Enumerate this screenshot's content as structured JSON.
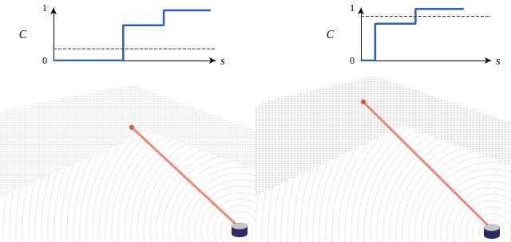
{
  "chart_data": [
    {
      "type": "line",
      "x_label": "s",
      "y_label": "C",
      "x": [
        0,
        0.43,
        0.43,
        0.68,
        0.68,
        0.97
      ],
      "values": [
        0,
        0,
        0.67,
        0.67,
        0.955,
        0.955
      ],
      "color": "#2c5fb5",
      "line_style": "solid",
      "threshold": 0.22,
      "xlim": [
        0,
        1
      ],
      "ylim": [
        0,
        1
      ],
      "yticks": [
        0,
        1
      ],
      "tick_labels": "y",
      "grid": false
    },
    {
      "type": "line",
      "x_label": "s",
      "y_label": "C",
      "x": [
        0,
        0.11,
        0.11,
        0.42,
        0.42,
        0.79
      ],
      "values": [
        0,
        0,
        0.7,
        0.7,
        0.98,
        0.98
      ],
      "color": "#2c5fb5",
      "line_style": "solid",
      "threshold": 0.85,
      "xlim": [
        0,
        1
      ],
      "ylim": [
        0,
        1
      ],
      "yticks": [
        0,
        1
      ],
      "tick_labels": "y",
      "grid": false
    }
  ]
}
